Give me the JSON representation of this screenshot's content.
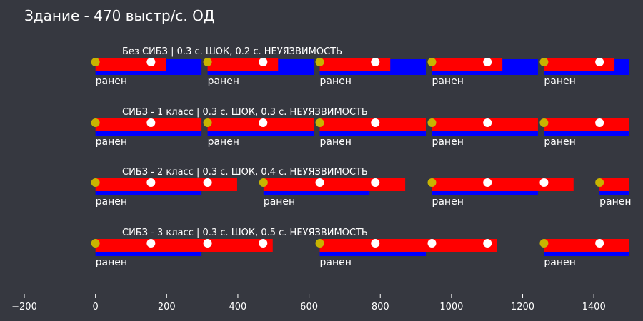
{
  "chart_data": {
    "type": "timeline",
    "title": "Здание - 470 выстр/с. ОД",
    "xlim": [
      -200,
      1500
    ],
    "x_ticks": [
      -200,
      0,
      200,
      400,
      600,
      800,
      1000,
      1200,
      1400
    ],
    "grid": false,
    "colors": {
      "background": "#363840",
      "shock_bar": "#ff0000",
      "invuln_bar": "#0000ff",
      "hit_marker": "#ffffff",
      "start_marker": "#c8b400",
      "text": "#ffffff"
    },
    "event_label": "ранен",
    "rows": [
      {
        "label": "Без СИБЗ | 0.3 с. ШОК, 0.2 с. НЕУЯЗВИМОСТЬ",
        "segments": [
          {
            "start": 0,
            "red_end": 198,
            "blue_end": 298,
            "hits": [
              156
            ]
          },
          {
            "start": 315,
            "red_end": 513,
            "blue_end": 613,
            "hits": [
              471
            ]
          },
          {
            "start": 630,
            "red_end": 828,
            "blue_end": 928,
            "hits": [
              786
            ]
          },
          {
            "start": 945,
            "red_end": 1143,
            "blue_end": 1243,
            "hits": [
              1101
            ]
          },
          {
            "start": 1260,
            "red_end": 1458,
            "blue_end": 1500,
            "hits": [
              1416
            ]
          }
        ]
      },
      {
        "label": "СИБЗ - 1 класс | 0.3 с. ШОК, 0.3 с. НЕУЯЗВИМОСТЬ",
        "segments": [
          {
            "start": 0,
            "red_end": 298,
            "blue_end": 298,
            "hits": [
              156
            ]
          },
          {
            "start": 315,
            "red_end": 613,
            "blue_end": 613,
            "hits": [
              471
            ]
          },
          {
            "start": 630,
            "red_end": 928,
            "blue_end": 928,
            "hits": [
              786
            ]
          },
          {
            "start": 945,
            "red_end": 1243,
            "blue_end": 1243,
            "hits": [
              1101
            ]
          },
          {
            "start": 1260,
            "red_end": 1500,
            "blue_end": 1500,
            "hits": [
              1416
            ]
          }
        ]
      },
      {
        "label": "СИБЗ - 2 класс | 0.3 с. ШОК, 0.4 с. НЕУЯЗВИМОСТЬ",
        "segments": [
          {
            "start": 0,
            "red_end": 398,
            "blue_end": 298,
            "hits": [
              156,
              315
            ]
          },
          {
            "start": 472,
            "red_end": 870,
            "blue_end": 770,
            "hits": [
              630,
              786
            ]
          },
          {
            "start": 945,
            "red_end": 1343,
            "blue_end": 1243,
            "hits": [
              1101,
              1260
            ]
          },
          {
            "start": 1416,
            "red_end": 1500,
            "blue_end": 1500,
            "hits": []
          }
        ]
      },
      {
        "label": "СИБЗ - 3 класс | 0.3 с. ШОК, 0.5 с. НЕУЯЗВИМОСТЬ",
        "segments": [
          {
            "start": 0,
            "red_end": 498,
            "blue_end": 298,
            "hits": [
              156,
              315,
              471
            ]
          },
          {
            "start": 630,
            "red_end": 1128,
            "blue_end": 928,
            "hits": [
              786,
              945,
              1101
            ]
          },
          {
            "start": 1260,
            "red_end": 1500,
            "blue_end": 1500,
            "hits": [
              1416
            ]
          }
        ]
      }
    ]
  }
}
